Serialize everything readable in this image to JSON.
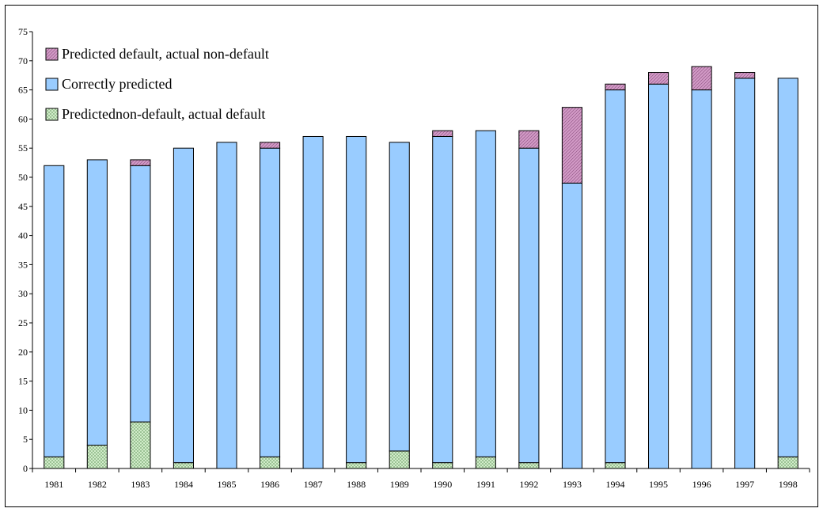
{
  "chart_data": {
    "type": "bar",
    "stacked": true,
    "categories": [
      "1981",
      "1982",
      "1983",
      "1984",
      "1985",
      "1986",
      "1987",
      "1988",
      "1989",
      "1990",
      "1991",
      "1992",
      "1993",
      "1994",
      "1995",
      "1996",
      "1997",
      "1998"
    ],
    "series": [
      {
        "name": "Predictednon-default, actual default",
        "values": [
          2,
          4,
          8,
          1,
          0,
          2,
          0,
          1,
          3,
          1,
          2,
          1,
          0,
          1,
          0,
          0,
          0,
          2
        ]
      },
      {
        "name": "Correctly predicted",
        "values": [
          50,
          49,
          44,
          54,
          56,
          53,
          57,
          56,
          53,
          56,
          56,
          54,
          49,
          64,
          66,
          65,
          67,
          65
        ]
      },
      {
        "name": "Predicted default, actual non-default",
        "values": [
          0,
          0,
          1,
          0,
          0,
          1,
          0,
          0,
          0,
          1,
          0,
          3,
          13,
          1,
          2,
          4,
          1,
          0
        ]
      }
    ],
    "legend_order": [
      "Predicted default, actual non-default",
      "Correctly predicted",
      "Predictednon-default, actual default"
    ],
    "ylim": [
      0,
      75
    ],
    "yticks": [
      0,
      5,
      10,
      15,
      20,
      25,
      30,
      35,
      40,
      45,
      50,
      55,
      60,
      65,
      70,
      75
    ],
    "grid": false,
    "legend_position": "top-left",
    "colors": {
      "Predicted default, actual non-default": "#cc88bb",
      "Correctly predicted": "#99ccff",
      "Predictednon-default, actual default": "#cfeec7"
    },
    "title": "",
    "xlabel": "",
    "ylabel": ""
  }
}
